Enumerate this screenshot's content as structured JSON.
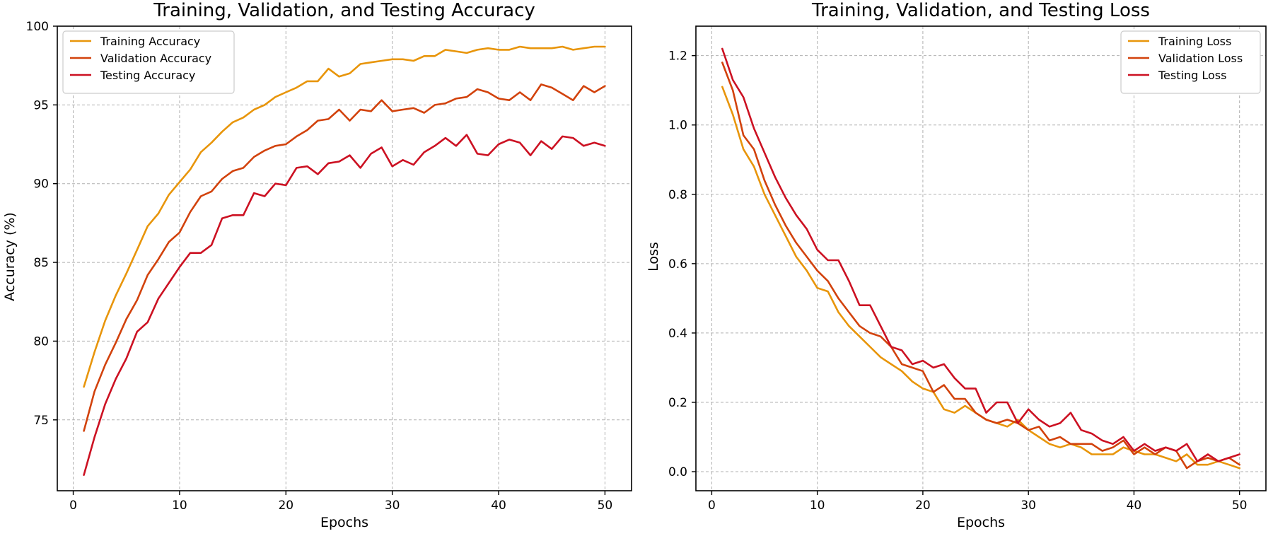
{
  "chart_data": [
    {
      "type": "line",
      "title": "Training, Validation, and Testing Accuracy",
      "xlabel": "Epochs",
      "ylabel": "Accuracy (%)",
      "xlim": [
        -1.5,
        52.5
      ],
      "ylim": [
        70.5,
        100
      ],
      "xticks": [
        0,
        10,
        20,
        30,
        40,
        50
      ],
      "yticks": [
        75,
        80,
        85,
        90,
        95,
        100
      ],
      "grid": true,
      "legend_position": "top-left",
      "x": [
        1,
        2,
        3,
        4,
        5,
        6,
        7,
        8,
        9,
        10,
        11,
        12,
        13,
        14,
        15,
        16,
        17,
        18,
        19,
        20,
        21,
        22,
        23,
        24,
        25,
        26,
        27,
        28,
        29,
        30,
        31,
        32,
        33,
        34,
        35,
        36,
        37,
        38,
        39,
        40,
        41,
        42,
        43,
        44,
        45,
        46,
        47,
        48,
        49,
        50
      ],
      "series": [
        {
          "name": "Training Accuracy",
          "color": "#e8950a",
          "values": [
            77.1,
            79.3,
            81.3,
            82.9,
            84.3,
            85.8,
            87.3,
            88.1,
            89.3,
            90.1,
            90.9,
            92.0,
            92.6,
            93.3,
            93.9,
            94.2,
            94.7,
            95.0,
            95.5,
            95.8,
            96.1,
            96.5,
            96.5,
            97.3,
            96.8,
            97.0,
            97.6,
            97.7,
            97.8,
            97.9,
            97.9,
            97.8,
            98.1,
            98.1,
            98.5,
            98.4,
            98.3,
            98.5,
            98.6,
            98.5,
            98.5,
            98.7,
            98.6,
            98.6,
            98.6,
            98.7,
            98.5,
            98.6,
            98.7,
            98.7
          ]
        },
        {
          "name": "Validation Accuracy",
          "color": "#d2420c",
          "values": [
            74.3,
            76.8,
            78.5,
            79.9,
            81.4,
            82.6,
            84.2,
            85.2,
            86.3,
            86.9,
            88.2,
            89.2,
            89.5,
            90.3,
            90.8,
            91.0,
            91.7,
            92.1,
            92.4,
            92.5,
            93.0,
            93.4,
            94.0,
            94.1,
            94.7,
            94.0,
            94.7,
            94.6,
            95.3,
            94.6,
            94.7,
            94.8,
            94.5,
            95.0,
            95.1,
            95.4,
            95.5,
            96.0,
            95.8,
            95.4,
            95.3,
            95.8,
            95.3,
            96.3,
            96.1,
            95.7,
            95.3,
            96.2,
            95.8,
            96.2
          ]
        },
        {
          "name": "Testing Accuracy",
          "color": "#cc1122",
          "values": [
            71.5,
            73.9,
            76.0,
            77.6,
            78.9,
            80.6,
            81.2,
            82.7,
            83.7,
            84.7,
            85.6,
            85.6,
            86.1,
            87.8,
            88.0,
            88.0,
            89.4,
            89.2,
            90.0,
            89.9,
            91.0,
            91.1,
            90.6,
            91.3,
            91.4,
            91.8,
            91.0,
            91.9,
            92.3,
            91.1,
            91.5,
            91.2,
            92.0,
            92.4,
            92.9,
            92.4,
            93.1,
            91.9,
            91.8,
            92.5,
            92.8,
            92.6,
            91.8,
            92.7,
            92.2,
            93.0,
            92.9,
            92.4,
            92.6,
            92.4
          ]
        }
      ]
    },
    {
      "type": "line",
      "title": "Training, Validation, and Testing Loss",
      "xlabel": "Epochs",
      "ylabel": "Loss",
      "xlim": [
        -1.5,
        52.5
      ],
      "ylim": [
        -0.055,
        1.285
      ],
      "xticks": [
        0,
        10,
        20,
        30,
        40,
        50
      ],
      "yticks": [
        0.0,
        0.2,
        0.4,
        0.6,
        0.8,
        1.0,
        1.2
      ],
      "ytick_labels": [
        "0.0",
        "0.2",
        "0.4",
        "0.6",
        "0.8",
        "1.0",
        "1.2"
      ],
      "grid": true,
      "legend_position": "top-right",
      "x": [
        1,
        2,
        3,
        4,
        5,
        6,
        7,
        8,
        9,
        10,
        11,
        12,
        13,
        14,
        15,
        16,
        17,
        18,
        19,
        20,
        21,
        22,
        23,
        24,
        25,
        26,
        27,
        28,
        29,
        30,
        31,
        32,
        33,
        34,
        35,
        36,
        37,
        38,
        39,
        40,
        41,
        42,
        43,
        44,
        45,
        46,
        47,
        48,
        49,
        50
      ],
      "series": [
        {
          "name": "Training Loss",
          "color": "#e8950a",
          "values": [
            1.11,
            1.03,
            0.93,
            0.88,
            0.8,
            0.74,
            0.68,
            0.62,
            0.58,
            0.53,
            0.52,
            0.46,
            0.42,
            0.39,
            0.36,
            0.33,
            0.31,
            0.29,
            0.26,
            0.24,
            0.23,
            0.18,
            0.17,
            0.19,
            0.17,
            0.15,
            0.14,
            0.13,
            0.15,
            0.12,
            0.1,
            0.08,
            0.07,
            0.08,
            0.07,
            0.05,
            0.05,
            0.05,
            0.07,
            0.06,
            0.05,
            0.05,
            0.04,
            0.03,
            0.05,
            0.02,
            0.02,
            0.03,
            0.02,
            0.01
          ]
        },
        {
          "name": "Validation Loss",
          "color": "#d2420c",
          "values": [
            1.18,
            1.1,
            0.97,
            0.93,
            0.84,
            0.77,
            0.71,
            0.66,
            0.62,
            0.58,
            0.55,
            0.5,
            0.46,
            0.42,
            0.4,
            0.39,
            0.36,
            0.31,
            0.3,
            0.29,
            0.23,
            0.25,
            0.21,
            0.21,
            0.17,
            0.15,
            0.14,
            0.15,
            0.14,
            0.12,
            0.13,
            0.09,
            0.1,
            0.08,
            0.08,
            0.08,
            0.06,
            0.07,
            0.09,
            0.05,
            0.07,
            0.05,
            0.07,
            0.06,
            0.01,
            0.03,
            0.04,
            0.03,
            0.04,
            0.02
          ]
        },
        {
          "name": "Testing Loss",
          "color": "#cc1122",
          "values": [
            1.22,
            1.13,
            1.08,
            0.99,
            0.92,
            0.85,
            0.79,
            0.74,
            0.7,
            0.64,
            0.61,
            0.61,
            0.55,
            0.48,
            0.48,
            0.42,
            0.36,
            0.35,
            0.31,
            0.32,
            0.3,
            0.31,
            0.27,
            0.24,
            0.24,
            0.17,
            0.2,
            0.2,
            0.14,
            0.18,
            0.15,
            0.13,
            0.14,
            0.17,
            0.12,
            0.11,
            0.09,
            0.08,
            0.1,
            0.06,
            0.08,
            0.06,
            0.07,
            0.06,
            0.08,
            0.03,
            0.05,
            0.03,
            0.04,
            0.05
          ]
        }
      ]
    }
  ]
}
